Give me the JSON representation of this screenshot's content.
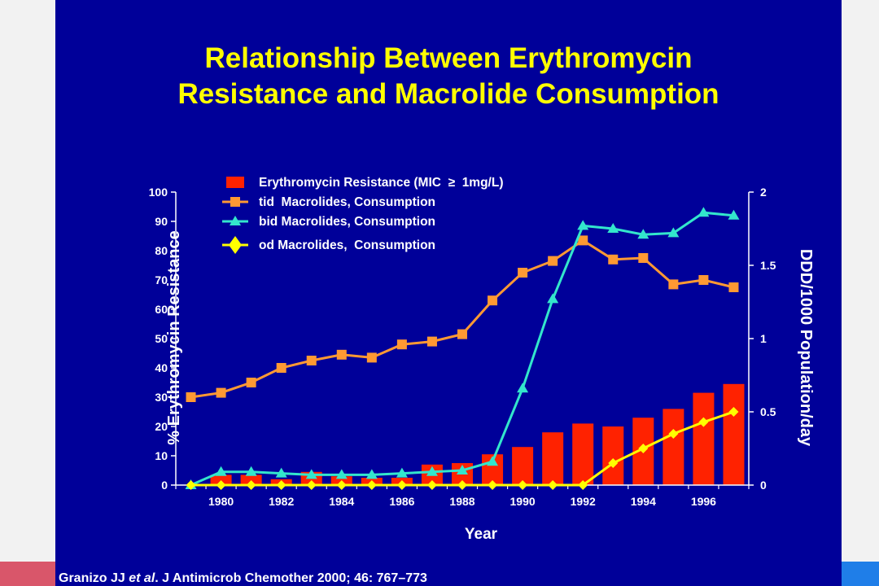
{
  "title_line1": "Relationship Between Erythromycin",
  "title_line2": "Resistance and Macrolide Consumption",
  "citation": {
    "prefix": "Granizo JJ ",
    "etal": "et al",
    "suffix": ". J Antimicrob Chemother 2000; 46: 767–773"
  },
  "colors": {
    "background": "#000099",
    "resistance": "#ff2200",
    "tid": "#ff9933",
    "bid": "#33e6cc",
    "od": "#ffff00",
    "title": "#ffff00"
  },
  "chart_data": {
    "type": "bar",
    "xlabel": "Year",
    "ylabel_left": "% Erythromycin Resistance",
    "ylabel_right": "DDD/1000 Population/day",
    "ylim_left": [
      0,
      100
    ],
    "ylim_right": [
      0,
      2
    ],
    "yticks_left": [
      "0",
      "10",
      "20",
      "30",
      "40",
      "50",
      "60",
      "70",
      "80",
      "90",
      "100"
    ],
    "yticks_right": [
      "0",
      "0.5",
      "1",
      "1.5",
      "2"
    ],
    "xticks": [
      "1980",
      "1982",
      "1984",
      "1986",
      "1988",
      "1990",
      "1992",
      "1994",
      "1996"
    ],
    "years": [
      1979,
      1980,
      1981,
      1982,
      1983,
      1984,
      1985,
      1986,
      1987,
      1988,
      1989,
      1990,
      1991,
      1992,
      1993,
      1994,
      1995,
      1996,
      1997
    ],
    "legend": [
      "Erythromycin Resistance (MIC  ≥  1mg/L)",
      "tid  Macrolides, Consumption",
      "bid Macrolides, Consumption",
      "od Macrolides,  Consumption"
    ],
    "series": [
      {
        "name": "Erythromycin Resistance (MIC ≥ 1mg/L)",
        "type": "bar",
        "axis": "left",
        "values": [
          0,
          3.5,
          3.5,
          2,
          4.5,
          3,
          2.5,
          2.5,
          7,
          7.5,
          10.5,
          13,
          18,
          21,
          20,
          23,
          26,
          31.5,
          34.5
        ]
      },
      {
        "name": "tid Macrolides, Consumption",
        "type": "line",
        "axis": "right",
        "marker": "square",
        "values": [
          0.6,
          0.63,
          0.7,
          0.8,
          0.85,
          0.89,
          0.87,
          0.96,
          0.98,
          1.03,
          1.26,
          1.45,
          1.53,
          1.67,
          1.54,
          1.55,
          1.37,
          1.4,
          1.35
        ]
      },
      {
        "name": "bid Macrolides, Consumption",
        "type": "line",
        "axis": "right",
        "marker": "triangle",
        "values": [
          0,
          0.09,
          0.09,
          0.08,
          0.07,
          0.07,
          0.07,
          0.08,
          0.09,
          0.1,
          0.16,
          0.66,
          1.27,
          1.77,
          1.75,
          1.71,
          1.72,
          1.86,
          1.84
        ]
      },
      {
        "name": "od Macrolides, Consumption",
        "type": "line",
        "axis": "right",
        "marker": "diamond",
        "values": [
          0,
          0,
          0,
          0,
          0,
          0,
          0,
          0,
          0,
          0,
          0,
          0,
          0,
          0,
          0.15,
          0.25,
          0.35,
          0.43,
          0.5
        ]
      }
    ]
  }
}
